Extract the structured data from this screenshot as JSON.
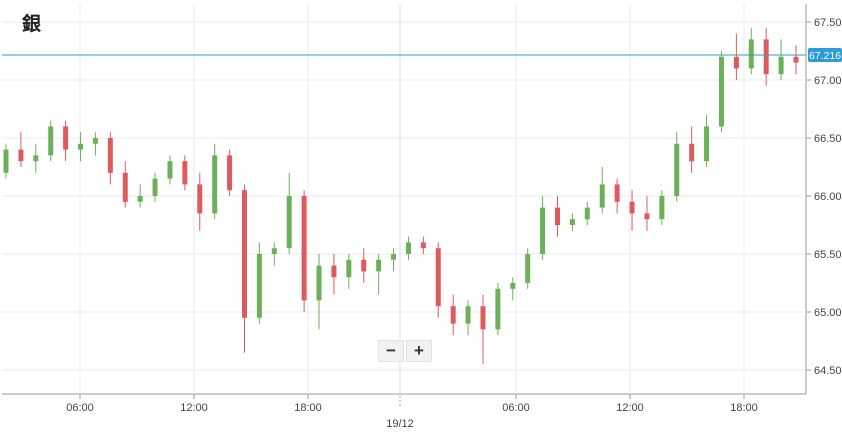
{
  "title": "銀",
  "zoom": {
    "minus_label": "−",
    "plus_label": "+"
  },
  "chart_data": {
    "type": "candlestick",
    "title": "銀",
    "y_ticks": [
      "64.500",
      "65.000",
      "65.500",
      "66.000",
      "66.500",
      "67.000",
      "67.500"
    ],
    "x_ticks": [
      "06:00",
      "12:00",
      "18:00",
      "06:00",
      "12:00",
      "18:00"
    ],
    "date_label": "19/12",
    "current_price": "67.216",
    "ylim": [
      64.3,
      67.6
    ],
    "grid": true,
    "colors": {
      "up": "#6cb05a",
      "down": "#dd5b5f",
      "price_line": "#2a9fb8",
      "price_badge": "#2b9bd9"
    },
    "ohlc_approx_hourly": [
      [
        66.2,
        66.45,
        66.15,
        66.4
      ],
      [
        66.4,
        66.55,
        66.25,
        66.3
      ],
      [
        66.3,
        66.45,
        66.2,
        66.35
      ],
      [
        66.35,
        66.65,
        66.3,
        66.6
      ],
      [
        66.6,
        66.65,
        66.3,
        66.4
      ],
      [
        66.4,
        66.55,
        66.3,
        66.45
      ],
      [
        66.45,
        66.55,
        66.35,
        66.5
      ],
      [
        66.5,
        66.55,
        66.1,
        66.2
      ],
      [
        66.2,
        66.3,
        65.9,
        65.95
      ],
      [
        65.95,
        66.1,
        65.9,
        66.0
      ],
      [
        66.0,
        66.2,
        65.95,
        66.15
      ],
      [
        66.15,
        66.35,
        66.1,
        66.3
      ],
      [
        66.3,
        66.35,
        66.05,
        66.1
      ],
      [
        66.1,
        66.2,
        65.7,
        65.85
      ],
      [
        65.85,
        66.45,
        65.8,
        66.35
      ],
      [
        66.35,
        66.4,
        66.0,
        66.05
      ],
      [
        66.05,
        66.1,
        64.65,
        64.95
      ],
      [
        64.95,
        65.6,
        64.9,
        65.5
      ],
      [
        65.5,
        65.6,
        65.4,
        65.55
      ],
      [
        65.55,
        66.2,
        65.5,
        66.0
      ],
      [
        66.0,
        66.05,
        65.0,
        65.1
      ],
      [
        65.1,
        65.5,
        64.85,
        65.4
      ],
      [
        65.4,
        65.5,
        65.15,
        65.3
      ],
      [
        65.3,
        65.5,
        65.2,
        65.45
      ],
      [
        65.45,
        65.55,
        65.25,
        65.35
      ],
      [
        65.35,
        65.5,
        65.15,
        65.45
      ],
      [
        65.45,
        65.55,
        65.35,
        65.5
      ],
      [
        65.5,
        65.65,
        65.45,
        65.6
      ],
      [
        65.6,
        65.65,
        65.5,
        65.55
      ],
      [
        65.55,
        65.6,
        64.95,
        65.05
      ],
      [
        65.05,
        65.15,
        64.8,
        64.9
      ],
      [
        64.9,
        65.1,
        64.8,
        65.05
      ],
      [
        65.05,
        65.15,
        64.55,
        64.85
      ],
      [
        64.85,
        65.25,
        64.8,
        65.2
      ],
      [
        65.2,
        65.3,
        65.1,
        65.25
      ],
      [
        65.25,
        65.55,
        65.2,
        65.5
      ],
      [
        65.5,
        66.0,
        65.45,
        65.9
      ],
      [
        65.9,
        66.0,
        65.65,
        65.75
      ],
      [
        65.75,
        65.85,
        65.7,
        65.8
      ],
      [
        65.8,
        65.95,
        65.75,
        65.9
      ],
      [
        65.9,
        66.25,
        65.85,
        66.1
      ],
      [
        66.1,
        66.15,
        65.85,
        65.95
      ],
      [
        65.95,
        66.05,
        65.7,
        65.85
      ],
      [
        65.85,
        66.0,
        65.7,
        65.8
      ],
      [
        65.8,
        66.05,
        65.75,
        66.0
      ],
      [
        66.0,
        66.55,
        65.95,
        66.45
      ],
      [
        66.45,
        66.6,
        66.2,
        66.3
      ],
      [
        66.3,
        66.7,
        66.25,
        66.6
      ],
      [
        66.6,
        67.25,
        66.55,
        67.2
      ],
      [
        67.2,
        67.4,
        67.0,
        67.1
      ],
      [
        67.1,
        67.45,
        67.05,
        67.35
      ],
      [
        67.35,
        67.45,
        66.95,
        67.05
      ],
      [
        67.05,
        67.35,
        67.0,
        67.2
      ],
      [
        67.2,
        67.3,
        67.05,
        67.15
      ]
    ]
  }
}
